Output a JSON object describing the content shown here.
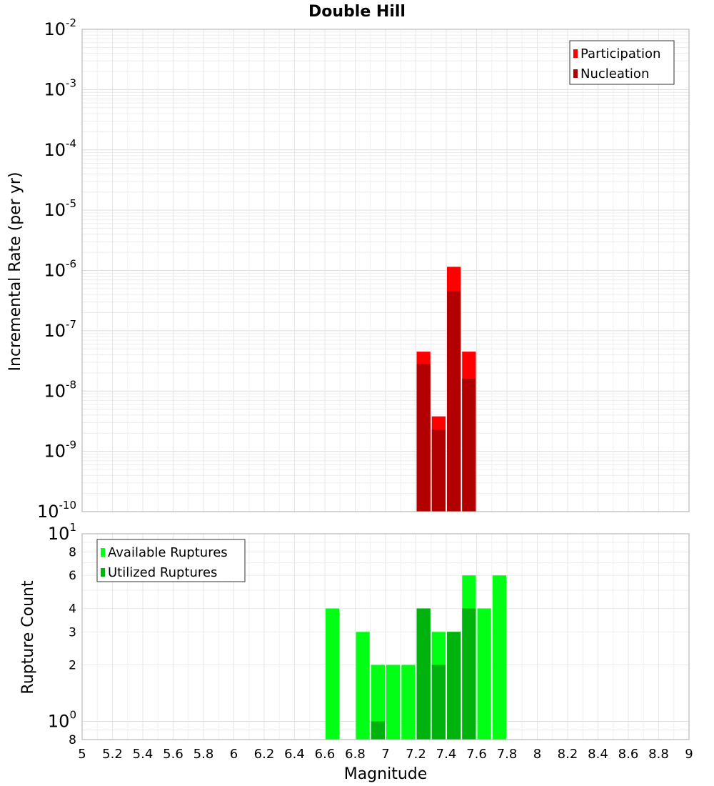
{
  "chart_data": [
    {
      "type": "bar",
      "title": "Double Hill",
      "xlabel": "",
      "ylabel": "Incremental Rate (per yr)",
      "yscale": "log",
      "ylim": [
        1e-10,
        0.01
      ],
      "xlim": [
        5,
        9
      ],
      "grid": true,
      "legend_position": "top-right",
      "bin_width": 0.1,
      "x": [
        7.25,
        7.35,
        7.45,
        7.55
      ],
      "series": [
        {
          "name": "Participation",
          "color": "#ff0000",
          "values": [
            4.5e-08,
            3.8e-09,
            1.15e-06,
            4.5e-08
          ]
        },
        {
          "name": "Nucleation",
          "color": "#b20000",
          "values": [
            2.8e-08,
            2.3e-09,
            4.5e-07,
            1.6e-08
          ]
        }
      ],
      "y_ticks": [
        {
          "base": "10",
          "exp": "-2",
          "value": 0.01
        },
        {
          "base": "10",
          "exp": "-3",
          "value": 0.001
        },
        {
          "base": "10",
          "exp": "-4",
          "value": 0.0001
        },
        {
          "base": "10",
          "exp": "-5",
          "value": 1e-05
        },
        {
          "base": "10",
          "exp": "-6",
          "value": 1e-06
        },
        {
          "base": "10",
          "exp": "-7",
          "value": 1e-07
        },
        {
          "base": "10",
          "exp": "-8",
          "value": 1e-08
        },
        {
          "base": "10",
          "exp": "-9",
          "value": 1e-09
        },
        {
          "base": "10",
          "exp": "-10",
          "value": 1e-10
        }
      ]
    },
    {
      "type": "bar",
      "title": "",
      "xlabel": "Magnitude",
      "ylabel": "Rupture Count",
      "yscale": "log",
      "ylim": [
        0.8,
        10
      ],
      "xlim": [
        5,
        9
      ],
      "grid": true,
      "legend_position": "top-left",
      "bin_width": 0.1,
      "x": [
        6.65,
        6.75,
        6.85,
        6.95,
        7.05,
        7.15,
        7.25,
        7.35,
        7.45,
        7.55,
        7.65,
        7.75
      ],
      "series": [
        {
          "name": "Available Ruptures",
          "color": "#00ff14",
          "values": [
            4,
            0,
            3,
            2,
            2,
            2,
            4,
            3,
            3,
            6,
            4,
            6
          ]
        },
        {
          "name": "Utilized Ruptures",
          "color": "#00b20e",
          "values": [
            0,
            0,
            0,
            1,
            0,
            0,
            4,
            2,
            3,
            4,
            0,
            0
          ]
        }
      ],
      "y_ticks": [
        {
          "base": "10",
          "exp": "1",
          "value": 10
        },
        {
          "base": "8",
          "exp": "",
          "value": 8
        },
        {
          "base": "6",
          "exp": "",
          "value": 6
        },
        {
          "base": "4",
          "exp": "",
          "value": 4
        },
        {
          "base": "3",
          "exp": "",
          "value": 3
        },
        {
          "base": "2",
          "exp": "",
          "value": 2
        },
        {
          "base": "10",
          "exp": "0",
          "value": 1
        },
        {
          "base": "8",
          "exp": "",
          "value": 0.8
        }
      ],
      "x_ticks": [
        "5",
        "5.2",
        "5.4",
        "5.6",
        "5.8",
        "6",
        "6.2",
        "6.4",
        "6.6",
        "6.8",
        "7",
        "7.2",
        "7.4",
        "7.6",
        "7.8",
        "8",
        "8.2",
        "8.4",
        "8.6",
        "8.8",
        "9"
      ]
    }
  ],
  "xlabel_shared": "Magnitude"
}
